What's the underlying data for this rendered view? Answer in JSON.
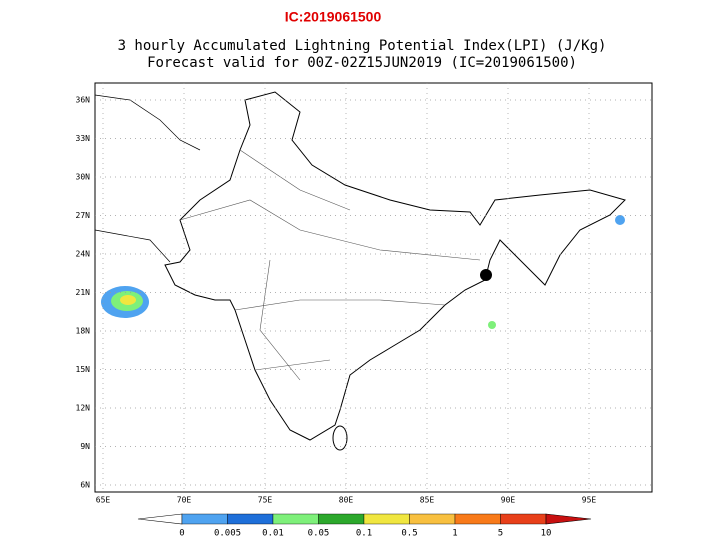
{
  "header": {
    "ic_label": "IC:2019061500",
    "title_line1": "3 hourly Accumulated Lightning Potential Index(LPI) (J/Kg)",
    "title_line2": "Forecast valid for 00Z-02Z15JUN2019 (IC=2019061500)"
  },
  "map": {
    "lat_labels": [
      "36N",
      "33N",
      "30N",
      "27N",
      "24N",
      "21N",
      "18N",
      "15N",
      "12N",
      "9N",
      "6N"
    ],
    "lon_labels": [
      "65E",
      "70E",
      "75E",
      "80E",
      "85E",
      "90E",
      "95E"
    ]
  },
  "colorbar": {
    "labels": [
      "0",
      "0.005",
      "0.01",
      "0.05",
      "0.1",
      "0.5",
      "1",
      "5",
      "10"
    ],
    "colors": [
      "#ffffff",
      "#4fa3f0",
      "#1e6fd9",
      "#7ef07a",
      "#2ca82c",
      "#f0e640",
      "#f8c040",
      "#f87a1a",
      "#e8401a",
      "#c81010"
    ]
  }
}
